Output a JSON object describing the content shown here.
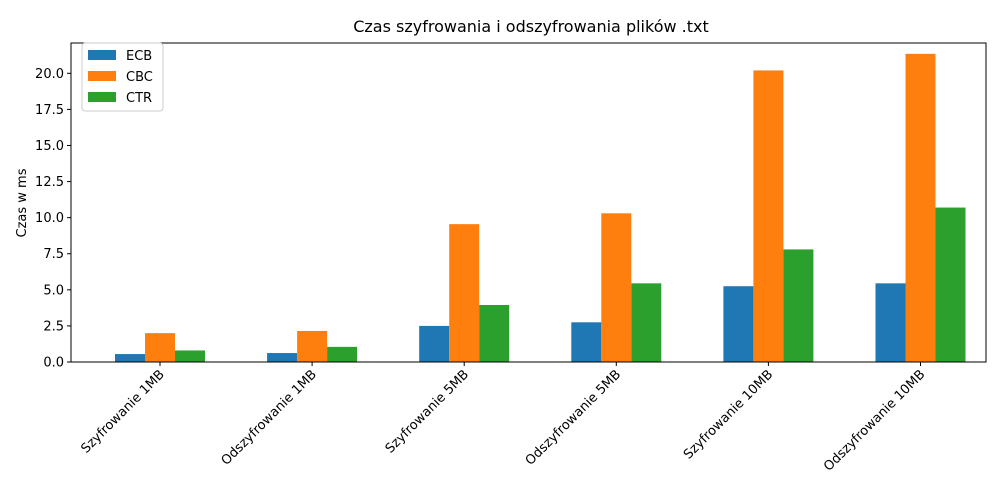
{
  "chart_data": {
    "type": "bar",
    "title": "Czas szyfrowania i odszyfrowania plików .txt",
    "xlabel": "",
    "ylabel": "Czas w ms",
    "categories": [
      "Szyfrowanie 1MB",
      "Odszyfrowanie 1MB",
      "Szyfrowanie 5MB",
      "Odszyfrowanie 5MB",
      "Szyfrowanie 10MB",
      "Odszyfrowanie 10MB"
    ],
    "series": [
      {
        "name": "ECB",
        "color": "#1f77b4",
        "values": [
          0.55,
          0.62,
          2.5,
          2.75,
          5.25,
          5.45
        ]
      },
      {
        "name": "CBC",
        "color": "#ff7f0e",
        "values": [
          2.0,
          2.15,
          9.55,
          10.3,
          20.2,
          21.35
        ]
      },
      {
        "name": "CTR",
        "color": "#2ca02c",
        "values": [
          0.8,
          1.05,
          3.95,
          5.45,
          7.8,
          10.7
        ]
      }
    ],
    "yticks": [
      "0.0",
      "2.5",
      "5.0",
      "7.5",
      "10.0",
      "12.5",
      "15.0",
      "17.5",
      "20.0"
    ],
    "ylim": [
      0,
      22.1
    ],
    "legend_position": "top-left",
    "grid": false
  }
}
